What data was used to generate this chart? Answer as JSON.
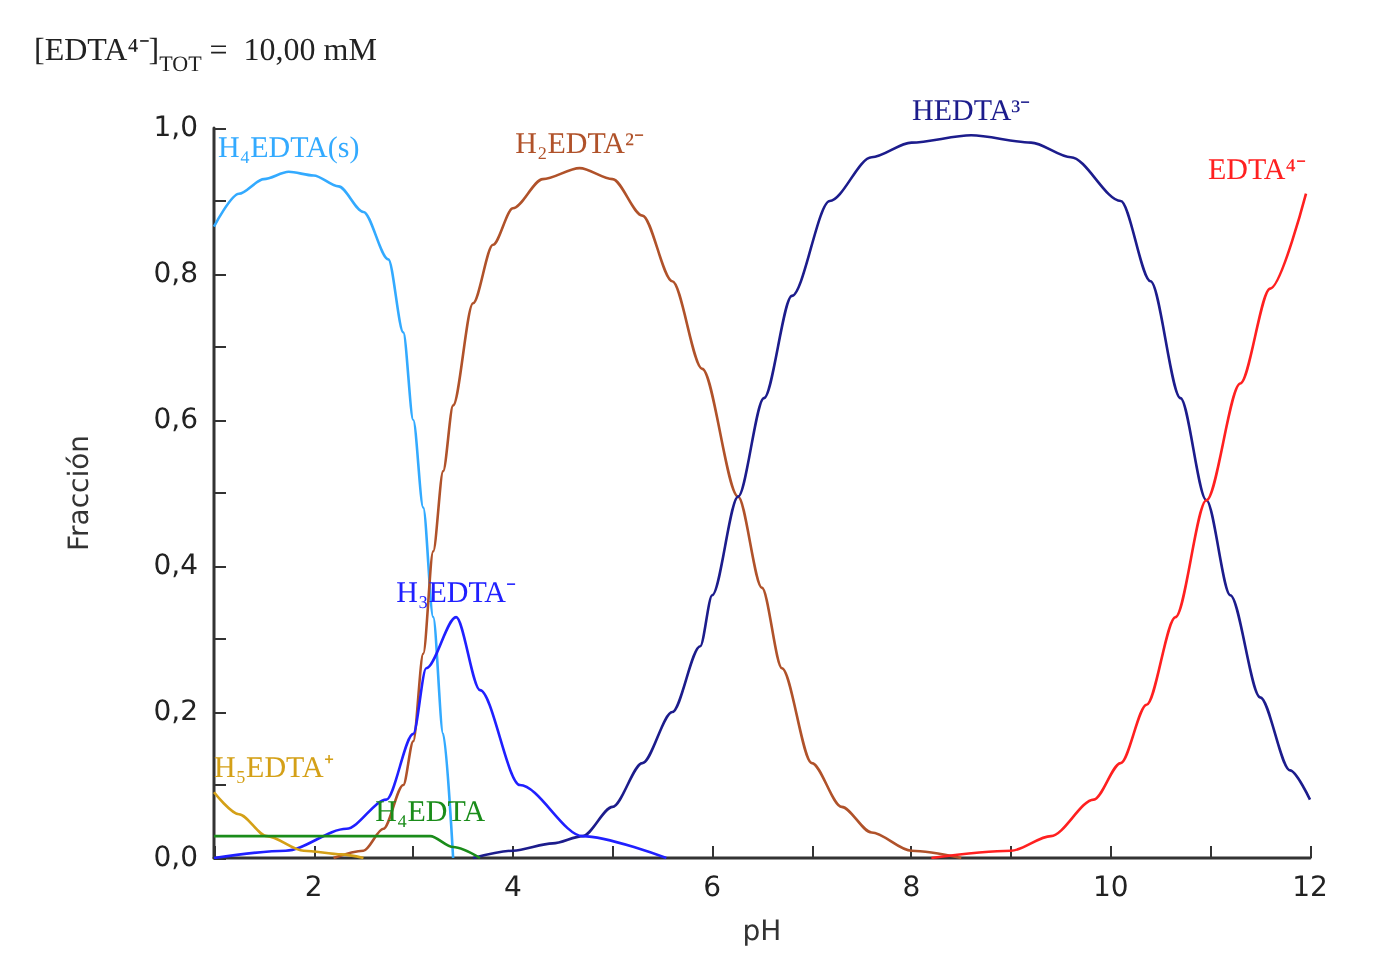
{
  "chart_data": {
    "type": "line",
    "title": "[EDTA⁴⁻]$_{TOT}$ =  10,00 mM",
    "xlabel": "pH",
    "ylabel": "Fracción",
    "xlim": [
      1,
      12
    ],
    "ylim": [
      0,
      1
    ],
    "xticks": [
      {
        "value": 1,
        "label": null
      },
      2,
      {
        "value": 3,
        "label": null
      },
      4,
      {
        "value": 5,
        "label": null
      },
      6,
      {
        "value": 7,
        "label": null
      },
      8,
      {
        "value": 9,
        "label": null
      },
      10,
      {
        "value": 11,
        "label": null
      },
      12
    ],
    "yticks": [
      {
        "value": 0,
        "label": "0,0"
      },
      {
        "value": 0.1,
        "label": null
      },
      {
        "value": 0.2,
        "label": "0,2"
      },
      {
        "value": 0.3,
        "label": null
      },
      {
        "value": 0.4,
        "label": "0,4"
      },
      {
        "value": 0.5,
        "label": null
      },
      {
        "value": 0.6,
        "label": "0,6"
      },
      {
        "value": 0.7,
        "label": null
      },
      {
        "value": 0.8,
        "label": "0,8"
      },
      {
        "value": 0.9,
        "label": null
      },
      {
        "value": 1,
        "label": "1,0"
      }
    ],
    "grid": false,
    "legend": false,
    "marker": "none",
    "line_style": "solid",
    "series": [
      {
        "name": "H₄EDTA(s)",
        "color": "#33aaff",
        "x": [
          1,
          1.25,
          1.5,
          1.75,
          2,
          2.25,
          2.5,
          2.75,
          2.9,
          3,
          3.1,
          3.2,
          3.3,
          3.4
        ],
        "values": [
          0.865,
          0.91,
          0.93,
          0.94,
          0.935,
          0.92,
          0.885,
          0.82,
          0.72,
          0.6,
          0.48,
          0.33,
          0.17,
          0
        ]
      },
      {
        "name": "H₂EDTA²⁻",
        "color": "#b0522a",
        "x": [
          2.2,
          2.5,
          2.7,
          2.9,
          3,
          3.1,
          3.2,
          3.3,
          3.4,
          3.6,
          3.8,
          4,
          4.3,
          4.67,
          5,
          5.3,
          5.6,
          5.9,
          6.26,
          6.5,
          6.7,
          7,
          7.3,
          7.6,
          8,
          8.5
        ],
        "values": [
          0,
          0.01,
          0.04,
          0.1,
          0.16,
          0.28,
          0.42,
          0.53,
          0.62,
          0.76,
          0.84,
          0.89,
          0.93,
          0.945,
          0.93,
          0.88,
          0.79,
          0.67,
          0.495,
          0.37,
          0.26,
          0.13,
          0.07,
          0.035,
          0.01,
          0
        ]
      },
      {
        "name": "HEDTA³⁻",
        "color": "#1c1c8c",
        "x": [
          3.6,
          4,
          4.4,
          4.7,
          5,
          5.3,
          5.6,
          5.88,
          6,
          6.26,
          6.52,
          6.8,
          7.18,
          7.6,
          8,
          8.6,
          9.2,
          9.6,
          10.1,
          10.4,
          10.7,
          10.96,
          11.2,
          11.5,
          11.8,
          12
        ],
        "values": [
          0,
          0.01,
          0.02,
          0.03,
          0.07,
          0.13,
          0.2,
          0.29,
          0.36,
          0.495,
          0.63,
          0.77,
          0.9,
          0.96,
          0.98,
          0.99,
          0.98,
          0.96,
          0.9,
          0.79,
          0.63,
          0.49,
          0.36,
          0.22,
          0.12,
          0.08
        ]
      },
      {
        "name": "EDTA⁴⁻",
        "color": "#ff2020",
        "x": [
          8.2,
          9,
          9.4,
          9.83,
          10.1,
          10.36,
          10.65,
          10.96,
          11.3,
          11.6,
          11.96
        ],
        "values": [
          0,
          0.01,
          0.03,
          0.08,
          0.13,
          0.21,
          0.33,
          0.49,
          0.65,
          0.78,
          0.91
        ]
      },
      {
        "name": "H₃EDTA⁻",
        "color": "#2020ff",
        "x": [
          1,
          1.72,
          2.33,
          2.73,
          3,
          3.13,
          3.43,
          3.67,
          4.07,
          4.7,
          5.54
        ],
        "values": [
          0,
          0.01,
          0.04,
          0.08,
          0.17,
          0.26,
          0.33,
          0.23,
          0.1,
          0.03,
          0
        ]
      },
      {
        "name": "H₅EDTA⁺",
        "color": "#d4a017",
        "x": [
          1,
          1.25,
          1.53,
          1.9,
          2.28,
          2.5
        ],
        "values": [
          0.09,
          0.06,
          0.03,
          0.01,
          0.005,
          0
        ]
      },
      {
        "name": "H₄EDTA",
        "color": "#1a8c1a",
        "x": [
          1,
          2,
          3.17,
          3.4,
          3.67
        ],
        "values": [
          0.03,
          0.03,
          0.03,
          0.015,
          0
        ]
      }
    ]
  }
}
